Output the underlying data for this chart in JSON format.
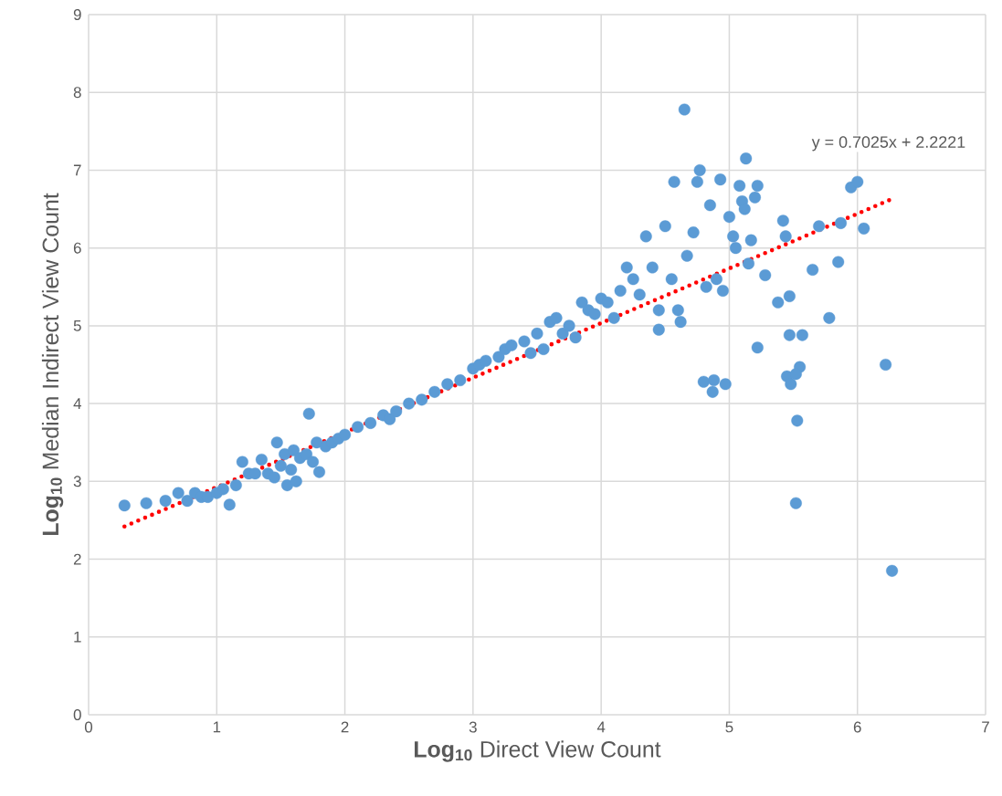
{
  "chart_data": {
    "type": "scatter",
    "xlabel": "**Log$_{10}$** Direct View Count",
    "ylabel": "**Log$_{10}$** Median Indirect View Count",
    "xlim": [
      0,
      7
    ],
    "xticks": [
      0,
      1,
      2,
      3,
      4,
      5,
      6,
      7
    ],
    "ylim": [
      0,
      9
    ],
    "yticks": [
      0,
      1,
      2,
      3,
      4,
      5,
      6,
      7,
      8,
      9
    ],
    "grid": true,
    "annotations": [
      "y = 0.7025x + 2.2221"
    ],
    "series": [
      {
        "color": "#5b9bd5",
        "marker": "circle",
        "x": [
          0.28,
          0.45,
          0.6,
          0.7,
          0.77,
          0.83,
          0.88,
          0.93,
          1.0,
          1.05,
          1.1,
          1.15,
          1.2,
          1.25,
          1.3,
          1.35,
          1.4,
          1.45,
          1.47,
          1.5,
          1.53,
          1.55,
          1.58,
          1.6,
          1.62,
          1.65,
          1.7,
          1.72,
          1.75,
          1.78,
          1.8,
          1.85,
          1.9,
          1.95,
          2.0,
          2.1,
          2.2,
          2.3,
          2.35,
          2.4,
          2.5,
          2.6,
          2.7,
          2.8,
          2.9,
          3.0,
          3.05,
          3.1,
          3.2,
          3.25,
          3.3,
          3.4,
          3.45,
          3.5,
          3.55,
          3.6,
          3.65,
          3.7,
          3.75,
          3.8,
          3.85,
          3.9,
          3.95,
          4.0,
          4.05,
          4.1,
          4.15,
          4.2,
          4.25,
          4.3,
          4.35,
          4.4,
          4.45,
          4.45,
          4.5,
          4.55,
          4.57,
          4.6,
          4.62,
          4.65,
          4.67,
          4.72,
          4.75,
          4.77,
          4.8,
          4.82,
          4.85,
          4.87,
          4.88,
          4.9,
          4.93,
          4.95,
          4.97,
          5.0,
          5.03,
          5.05,
          5.08,
          5.1,
          5.12,
          5.13,
          5.15,
          5.17,
          5.2,
          5.22,
          5.22,
          5.28,
          5.38,
          5.42,
          5.44,
          5.45,
          5.47,
          5.47,
          5.48,
          5.52,
          5.53,
          5.55,
          5.52,
          5.57,
          5.65,
          5.7,
          5.78,
          5.85,
          5.87,
          5.95,
          6.0,
          6.05,
          6.22,
          6.27
        ],
        "values": [
          2.69,
          2.72,
          2.75,
          2.85,
          2.75,
          2.85,
          2.8,
          2.8,
          2.85,
          2.9,
          2.7,
          2.95,
          3.25,
          3.1,
          3.1,
          3.28,
          3.1,
          3.05,
          3.5,
          3.2,
          3.35,
          2.95,
          3.15,
          3.4,
          3.0,
          3.3,
          3.35,
          3.87,
          3.25,
          3.5,
          3.12,
          3.45,
          3.5,
          3.55,
          3.6,
          3.7,
          3.75,
          3.85,
          3.8,
          3.9,
          4.0,
          4.05,
          4.15,
          4.25,
          4.3,
          4.45,
          4.5,
          4.55,
          4.6,
          4.7,
          4.75,
          4.8,
          4.65,
          4.9,
          4.7,
          5.05,
          5.1,
          4.9,
          5.0,
          4.85,
          5.3,
          5.2,
          5.15,
          5.35,
          5.3,
          5.1,
          5.45,
          5.75,
          5.6,
          5.4,
          6.15,
          5.75,
          5.2,
          4.95,
          6.28,
          5.6,
          6.85,
          5.2,
          5.05,
          7.78,
          5.9,
          6.2,
          6.85,
          7.0,
          4.28,
          5.5,
          6.55,
          4.15,
          4.3,
          5.6,
          6.88,
          5.45,
          4.25,
          6.4,
          6.15,
          6.0,
          6.8,
          6.6,
          6.5,
          7.15,
          5.8,
          6.1,
          6.65,
          6.8,
          4.72,
          5.65,
          5.3,
          6.35,
          6.15,
          4.35,
          4.88,
          5.38,
          4.25,
          2.72,
          3.78,
          4.47,
          4.38,
          4.88,
          5.72,
          6.28,
          5.1,
          5.82,
          6.32,
          6.78,
          6.85,
          6.25,
          4.5,
          1.85
        ]
      },
      {
        "type": "line",
        "color": "#ff0000",
        "line_style": "dotted",
        "marker": "none",
        "x": [
          0.28,
          6.27
        ],
        "values": [
          2.42,
          6.63
        ]
      }
    ]
  }
}
